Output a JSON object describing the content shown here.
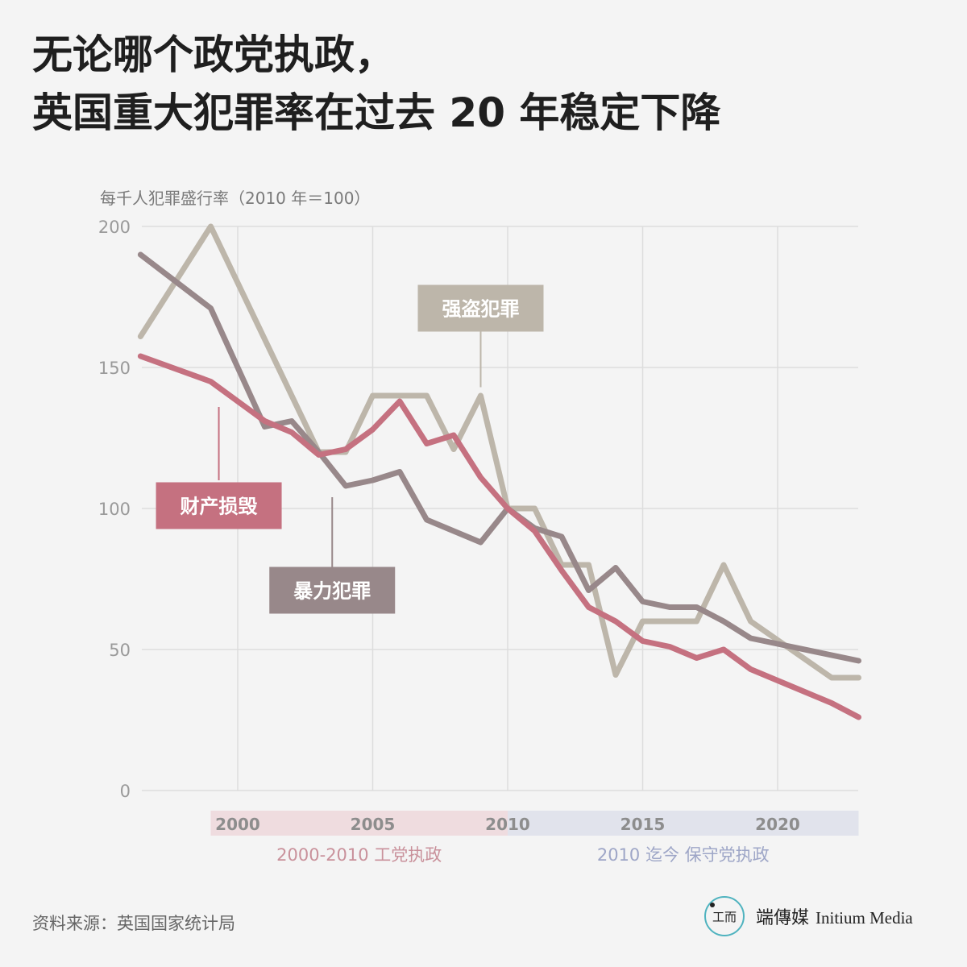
{
  "title": {
    "line1": "无论哪个政党执政，",
    "line2": "英国重大犯罪率在过去 20 年稳定下降"
  },
  "source": "资料来源：英国国家统计局",
  "brand": {
    "logo_text": "工而",
    "name_cn": "端傳媒",
    "name_en": "Initium Media"
  },
  "chart_data": {
    "type": "line",
    "ylabel": "每千人犯罪盛行率（2010 年＝100）",
    "ylim": [
      0,
      200
    ],
    "yticks": [
      0,
      50,
      100,
      150,
      200
    ],
    "xlim": [
      1996.4,
      2023
    ],
    "xticks": [
      2000,
      2005,
      2010,
      2015,
      2020
    ],
    "grid": true,
    "periods": [
      {
        "label": "2000-2010 工党执政",
        "start": 1999,
        "end": 2010,
        "color": "#efdcdf",
        "text_color": "#c9919b"
      },
      {
        "label": "2010 迄今 保守党执政",
        "start": 2010,
        "end": 2023,
        "color": "#e1e3ec",
        "text_color": "#9ea6c7"
      }
    ],
    "series": [
      {
        "name": "强盗犯罪",
        "color": "#bdb6aa",
        "label_pos": {
          "x": 2009,
          "y": 171
        },
        "leader_from": 163,
        "leader_to": 143,
        "points": [
          [
            1996.4,
            161
          ],
          [
            1999,
            200
          ],
          [
            2003,
            120
          ],
          [
            2004,
            120
          ],
          [
            2005,
            140
          ],
          [
            2007,
            140
          ],
          [
            2008,
            121
          ],
          [
            2009,
            140
          ],
          [
            2010,
            100
          ],
          [
            2011,
            100
          ],
          [
            2012,
            80
          ],
          [
            2013,
            80
          ],
          [
            2014,
            41
          ],
          [
            2015,
            60
          ],
          [
            2017,
            60
          ],
          [
            2018,
            80
          ],
          [
            2019,
            60
          ],
          [
            2022,
            40
          ],
          [
            2023,
            40
          ]
        ]
      },
      {
        "name": "暴力犯罪",
        "color": "#98888a",
        "label_pos": {
          "x": 2003.5,
          "y": 71
        },
        "leader_from": 79,
        "leader_to": 104,
        "points": [
          [
            1996.4,
            190
          ],
          [
            1999,
            171
          ],
          [
            2001,
            129
          ],
          [
            2002,
            131
          ],
          [
            2003,
            120
          ],
          [
            2004,
            108
          ],
          [
            2005,
            110
          ],
          [
            2006,
            113
          ],
          [
            2007,
            96
          ],
          [
            2009,
            88
          ],
          [
            2010,
            100
          ],
          [
            2011,
            93
          ],
          [
            2012,
            90
          ],
          [
            2013,
            71
          ],
          [
            2014,
            79
          ],
          [
            2015,
            67
          ],
          [
            2016,
            65
          ],
          [
            2017,
            65
          ],
          [
            2018,
            60
          ],
          [
            2019,
            54
          ],
          [
            2020,
            52
          ],
          [
            2023,
            46
          ]
        ]
      },
      {
        "name": "财产损毁",
        "color": "#c57180",
        "label_pos": {
          "x": 1999.3,
          "y": 101
        },
        "leader_from": 110,
        "leader_to": 136,
        "points": [
          [
            1996.4,
            154
          ],
          [
            1999,
            145
          ],
          [
            2001,
            131
          ],
          [
            2002,
            127
          ],
          [
            2003,
            119
          ],
          [
            2004,
            121
          ],
          [
            2005,
            128
          ],
          [
            2006,
            138
          ],
          [
            2007,
            123
          ],
          [
            2008,
            126
          ],
          [
            2009,
            111
          ],
          [
            2010,
            100
          ],
          [
            2011,
            92
          ],
          [
            2012,
            78
          ],
          [
            2013,
            65
          ],
          [
            2014,
            60
          ],
          [
            2015,
            53
          ],
          [
            2016,
            51
          ],
          [
            2017,
            47
          ],
          [
            2018,
            50
          ],
          [
            2019,
            43
          ],
          [
            2020,
            39
          ],
          [
            2021,
            35
          ],
          [
            2022,
            31
          ],
          [
            2023,
            26
          ]
        ]
      }
    ]
  }
}
